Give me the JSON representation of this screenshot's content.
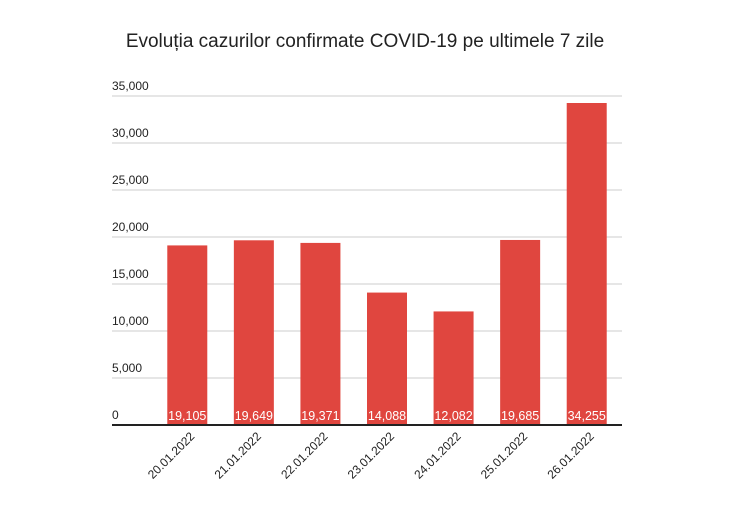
{
  "chart_data": {
    "type": "bar",
    "title": "Evoluția cazurilor confirmate COVID-19 pe ultimele 7 zile",
    "categories": [
      "20.01.2022",
      "21.01.2022",
      "22.01.2022",
      "23.01.2022",
      "24.01.2022",
      "25.01.2022",
      "26.01.2022"
    ],
    "values": [
      19105,
      19649,
      19371,
      14088,
      12082,
      19685,
      34255
    ],
    "value_labels": [
      "19,105",
      "19,649",
      "19,371",
      "14,088",
      "12,082",
      "19,685",
      "34,255"
    ],
    "color": "#e0463f",
    "ylim": [
      0,
      35000
    ],
    "yticks": [
      0,
      {
        "value": 5000,
        "label": "5,000"
      },
      {
        "value": 10000,
        "label": "10,000"
      },
      {
        "value": 15000,
        "label": "15,000"
      },
      {
        "value": 20000,
        "label": "20,000"
      },
      {
        "value": 25000,
        "label": "25,000"
      },
      {
        "value": 30000,
        "label": "30,000"
      },
      {
        "value": 35000,
        "label": "35,000"
      }
    ],
    "grid": true
  }
}
